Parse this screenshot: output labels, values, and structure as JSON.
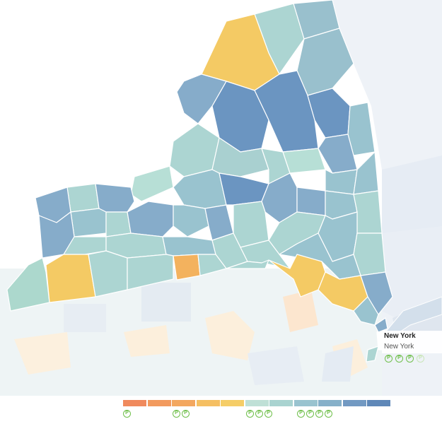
{
  "tooltip": {
    "title": "New York",
    "subtitle": "New York",
    "icon": "pin-icon",
    "active_pins": 3,
    "total_pins": 4
  },
  "legend": {
    "colors": [
      "#f08a5d",
      "#f29a5e",
      "#f3a75f",
      "#f5bf62",
      "#f5cd67",
      "#bfe0d6",
      "#a9d3d0",
      "#99c3cf",
      "#86b0c9",
      "#7299c2",
      "#5f88b8"
    ],
    "icon_groups": [
      1,
      2,
      0,
      3,
      4
    ],
    "icon": "pin-icon"
  },
  "colors": {
    "background_land": "#eef3f6",
    "neighbor_region": "#e7edf4",
    "neighbor_warm": "#fcefdc",
    "water": "#ffffff",
    "highlight": "#ffffff"
  }
}
